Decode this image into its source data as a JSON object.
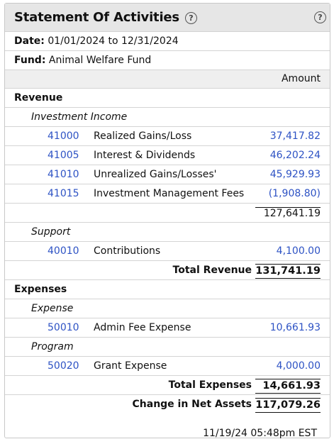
{
  "panel": {
    "title": "Statement Of Activities",
    "help_symbol": "?"
  },
  "meta": {
    "date_label": "Date:",
    "date_value": "01/01/2024 to 12/31/2024",
    "fund_label": "Fund:",
    "fund_value": "Animal Welfare Fund"
  },
  "columns": {
    "amount": "Amount"
  },
  "revenue": {
    "heading": "Revenue",
    "investment_income": {
      "heading": "Investment Income",
      "accounts": [
        {
          "code": "41000",
          "name": "Realized Gains/Loss",
          "amount": "37,417.82"
        },
        {
          "code": "41005",
          "name": "Interest & Dividends",
          "amount": "46,202.24"
        },
        {
          "code": "41010",
          "name": "Unrealized Gains/Losses'",
          "amount": "45,929.93"
        },
        {
          "code": "41015",
          "name": "Investment Management Fees",
          "amount": "(1,908.80)"
        }
      ],
      "subtotal": "127,641.19"
    },
    "support": {
      "heading": "Support",
      "accounts": [
        {
          "code": "40010",
          "name": "Contributions",
          "amount": "4,100.00"
        }
      ]
    },
    "total_label": "Total Revenue",
    "total_value": "131,741.19"
  },
  "expenses": {
    "heading": "Expenses",
    "expense": {
      "heading": "Expense",
      "accounts": [
        {
          "code": "50010",
          "name": "Admin Fee Expense",
          "amount": "10,661.93"
        }
      ]
    },
    "program": {
      "heading": "Program",
      "accounts": [
        {
          "code": "50020",
          "name": "Grant Expense",
          "amount": "4,000.00"
        }
      ]
    },
    "total_label": "Total Expenses",
    "total_value": "14,661.93"
  },
  "net": {
    "label": "Change in Net Assets",
    "value": "117,079.26"
  },
  "timestamp": "11/19/24 05:48pm EST",
  "colors": {
    "link": "#2d52c4",
    "header_bg": "#e6e6e6"
  }
}
